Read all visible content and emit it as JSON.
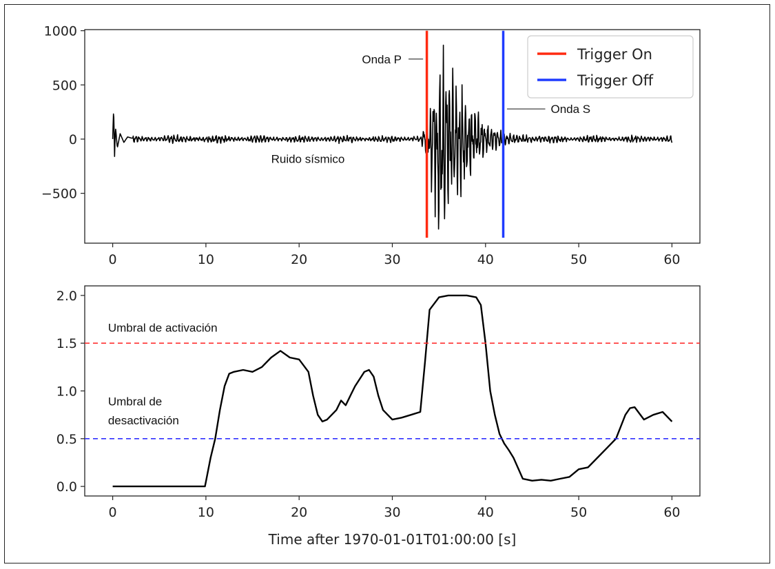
{
  "chart_data": [
    {
      "type": "line",
      "title": "",
      "xlabel": "",
      "ylabel": "",
      "xlim": [
        -3,
        63
      ],
      "ylim": [
        -960,
        1010
      ],
      "xticks": [
        "0",
        "10",
        "20",
        "30",
        "40",
        "50",
        "60"
      ],
      "yticks": [
        "1000",
        "500",
        "0",
        "−500"
      ],
      "legend": {
        "placement": "top-right",
        "entries": [
          {
            "label": "Trigger On",
            "color": "#ff2a10"
          },
          {
            "label": "Trigger Off",
            "color": "#1f3bff"
          }
        ]
      },
      "series": [
        {
          "color": "#000000",
          "x": [
            0,
            0.1,
            0.2,
            0.3,
            0.5,
            0.8,
            1.2,
            1.6,
            2,
            3,
            6,
            10,
            14,
            16.5,
            18,
            24,
            28,
            31,
            33,
            33.8,
            34.5,
            35,
            35.5,
            36,
            37,
            38,
            39,
            40,
            42,
            45,
            50,
            55,
            60
          ],
          "y": [
            0,
            290,
            -160,
            110,
            -80,
            50,
            -30,
            20,
            10,
            0,
            0,
            0,
            0,
            0,
            0,
            0,
            0,
            0,
            0,
            300,
            650,
            880,
            920,
            700,
            550,
            450,
            300,
            150,
            60,
            30,
            15,
            10,
            5
          ]
        },
        {
          "name": "Trigger On",
          "color": "#ff2a10",
          "x": [
            33.7,
            33.7
          ],
          "y": [
            -910,
            1000
          ]
        },
        {
          "name": "Trigger Off",
          "color": "#1f3bff",
          "x": [
            41.9,
            41.9
          ],
          "y": [
            -910,
            1000
          ]
        }
      ],
      "annotations": [
        {
          "text": "Onda P",
          "x": 31,
          "y": 700
        },
        {
          "text": "Onda S",
          "x": 47,
          "y": 240
        },
        {
          "text": "Ruido sísmico",
          "x": 17,
          "y": -220
        }
      ]
    },
    {
      "type": "line",
      "title": "",
      "xlabel": "Time after 1970-01-01T01:00:00 [s]",
      "ylabel": "",
      "xlim": [
        -3,
        63
      ],
      "ylim": [
        -0.1,
        2.1
      ],
      "xticks": [
        "0",
        "10",
        "20",
        "30",
        "40",
        "50",
        "60"
      ],
      "yticks": [
        "0.0",
        "0.5",
        "1.0",
        "1.5",
        "2.0"
      ],
      "series": [
        {
          "color": "#000000",
          "x": [
            0,
            9.9,
            10,
            10.5,
            11,
            11.5,
            12,
            12.5,
            13,
            14,
            15,
            16,
            17,
            18,
            19,
            20,
            21,
            21.5,
            22,
            22.5,
            23,
            24,
            24.5,
            25,
            25.5,
            26,
            27,
            27.5,
            28,
            28.5,
            29,
            30,
            31,
            32,
            33,
            33.5,
            34,
            35,
            36,
            37,
            38,
            39,
            39.5,
            40,
            40.5,
            41,
            41.5,
            42,
            42.5,
            43,
            44,
            45,
            46,
            47,
            48,
            49,
            50,
            51,
            52,
            53,
            54,
            55,
            55.5,
            56,
            57,
            58,
            59,
            60
          ],
          "y": [
            0,
            0,
            0.05,
            0.3,
            0.5,
            0.8,
            1.05,
            1.18,
            1.2,
            1.22,
            1.2,
            1.25,
            1.35,
            1.42,
            1.35,
            1.33,
            1.2,
            0.95,
            0.75,
            0.68,
            0.7,
            0.8,
            0.9,
            0.85,
            0.95,
            1.05,
            1.2,
            1.22,
            1.15,
            0.95,
            0.8,
            0.7,
            0.72,
            0.75,
            0.78,
            1.3,
            1.85,
            1.98,
            2.0,
            2.0,
            2.0,
            1.98,
            1.9,
            1.5,
            1.0,
            0.75,
            0.55,
            0.45,
            0.38,
            0.3,
            0.08,
            0.06,
            0.07,
            0.06,
            0.08,
            0.1,
            0.18,
            0.2,
            0.3,
            0.4,
            0.5,
            0.75,
            0.82,
            0.83,
            0.7,
            0.75,
            0.78,
            0.68
          ]
        },
        {
          "color": "#ff3030",
          "dashed": true,
          "x": [
            -3,
            63
          ],
          "y": [
            1.5,
            1.5
          ]
        },
        {
          "color": "#3030ff",
          "dashed": true,
          "x": [
            -3,
            63
          ],
          "y": [
            0.5,
            0.5
          ]
        }
      ],
      "annotations": [
        {
          "text": "Umbral de activación",
          "x": -0.5,
          "y": 1.62
        },
        {
          "text": "Umbral de",
          "x": -0.5,
          "y": 0.85
        },
        {
          "text": "desactivación",
          "x": -0.5,
          "y": 0.65
        }
      ]
    }
  ]
}
